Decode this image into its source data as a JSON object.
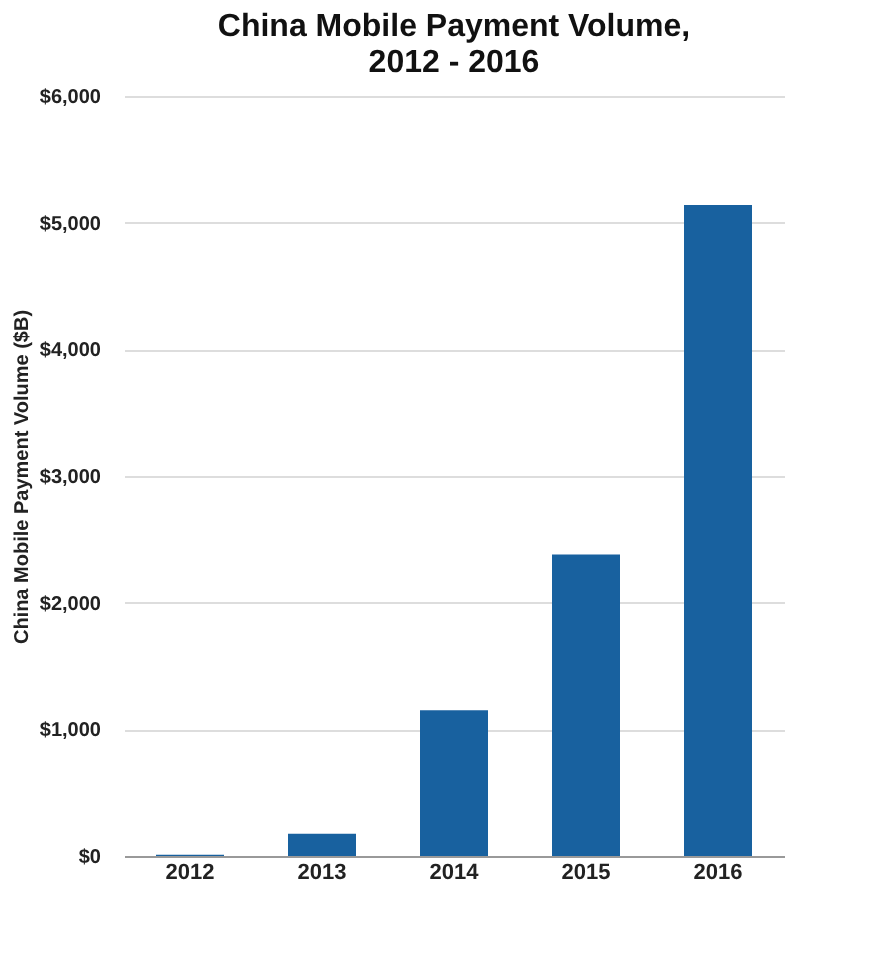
{
  "chart_data": {
    "type": "bar",
    "title": "China Mobile Payment Volume, 2012 - 2016",
    "ylabel": "China Mobile Payment Volume ($B)",
    "categories": [
      "2012",
      "2013",
      "2014",
      "2015",
      "2016"
    ],
    "values": [
      10,
      175,
      1150,
      2380,
      5140
    ],
    "color": "#18619f",
    "ylim": [
      0,
      6000
    ],
    "yticks": [
      {
        "value": 0,
        "label": "$0"
      },
      {
        "value": 1000,
        "label": "$1,000"
      },
      {
        "value": 2000,
        "label": "$2,000"
      },
      {
        "value": 3000,
        "label": "$3,000"
      },
      {
        "value": 4000,
        "label": "$4,000"
      },
      {
        "value": 5000,
        "label": "$5,000"
      },
      {
        "value": 6000,
        "label": "$6,000"
      }
    ],
    "grid": "y"
  }
}
